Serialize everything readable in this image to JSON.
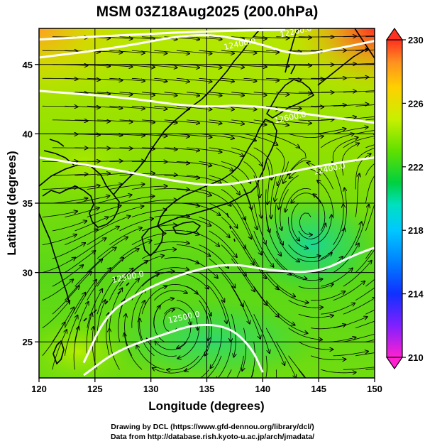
{
  "title": "MSM 03Z18Aug2025 (200.0hPa)",
  "axes": {
    "xlabel": "Longitude (degrees)",
    "ylabel": "Latitude  (degrees)",
    "xticks": [
      "120",
      "125",
      "130",
      "135",
      "140",
      "145",
      "150"
    ],
    "yticks": [
      "25",
      "30",
      "35",
      "40",
      "45"
    ],
    "xlim": [
      120,
      150
    ],
    "ylim": [
      22.4,
      47.6
    ]
  },
  "colorbar": {
    "ticks": [
      "210",
      "214",
      "218",
      "222",
      "226",
      "230"
    ],
    "range": [
      210,
      230
    ],
    "colors": [
      "#ff20d0",
      "#8020ff",
      "#1030ff",
      "#00b0ff",
      "#00e0c0",
      "#00d040",
      "#60e000",
      "#c8f000",
      "#ffd000",
      "#ff9020",
      "#ff3020"
    ]
  },
  "contour_labels": [
    "12200.0",
    "12400.0",
    "12600.0",
    "12400.0",
    "12500.0",
    "12500.0"
  ],
  "credits": {
    "line1": "Drawing by DCL (https://www.gfd-dennou.org/library/dcl/)",
    "line2": "Data from http://database.rish.kyoto-u.ac.jp/arch/jmadata/"
  },
  "chart_data": {
    "type": "heatmap",
    "title": "MSM 03Z18Aug2025 (200.0hPa)",
    "xlabel": "Longitude (degrees)",
    "ylabel": "Latitude  (degrees)",
    "xlim": [
      120,
      150
    ],
    "ylim": [
      22.4,
      47.6
    ],
    "color_range": [
      210,
      230
    ],
    "temperature_samples": [
      {
        "lon": 121,
        "lat": 47,
        "value": 228
      },
      {
        "lon": 149,
        "lat": 47,
        "value": 230
      },
      {
        "lon": 135,
        "lat": 45,
        "value": 224
      },
      {
        "lon": 125,
        "lat": 40,
        "value": 223
      },
      {
        "lon": 140,
        "lat": 35,
        "value": 222
      },
      {
        "lon": 144,
        "lat": 33,
        "value": 220
      },
      {
        "lon": 135,
        "lat": 28,
        "value": 221
      },
      {
        "lon": 127,
        "lat": 25,
        "value": 223
      },
      {
        "lon": 145,
        "lat": 25,
        "value": 220
      }
    ],
    "contours": [
      {
        "label": "12200.0",
        "points": [
          [
            120,
            46.8
          ],
          [
            127,
            47.1
          ],
          [
            135,
            47.4
          ],
          [
            142,
            47.5
          ]
        ]
      },
      {
        "label": "12400.0",
        "points": [
          [
            120,
            45.5
          ],
          [
            127,
            46.2
          ],
          [
            134,
            47.3
          ],
          [
            139,
            46.7
          ],
          [
            143,
            45.6
          ],
          [
            147,
            46.2
          ],
          [
            150,
            46.7
          ]
        ]
      },
      {
        "label": "12600.0",
        "points": [
          [
            120,
            43.1
          ],
          [
            128,
            42.6
          ],
          [
            134,
            41.9
          ],
          [
            139,
            42.1
          ],
          [
            144,
            41.4
          ],
          [
            148,
            41.0
          ],
          [
            150,
            40.8
          ]
        ]
      },
      {
        "label": "12400.0",
        "points": [
          [
            120,
            38.3
          ],
          [
            127,
            37.4
          ],
          [
            132,
            36.6
          ],
          [
            136,
            36.2
          ],
          [
            140,
            36.8
          ],
          [
            145,
            37.7
          ],
          [
            150,
            38.3
          ]
        ]
      },
      {
        "label": "12500.0",
        "points": [
          [
            124,
            23.5
          ],
          [
            126,
            27.0
          ],
          [
            129,
            28.6
          ],
          [
            133,
            30.0
          ],
          [
            137,
            30.7
          ],
          [
            141,
            30.1
          ],
          [
            145,
            30.0
          ],
          [
            148,
            31.2
          ],
          [
            150,
            31.8
          ]
        ]
      },
      {
        "label": "12500.0",
        "points": [
          [
            124,
            22.6
          ],
          [
            127,
            24.4
          ],
          [
            131,
            25.5
          ],
          [
            134,
            26.3
          ],
          [
            137,
            26.1
          ],
          [
            139,
            24.6
          ],
          [
            140,
            22.8
          ]
        ]
      }
    ]
  }
}
